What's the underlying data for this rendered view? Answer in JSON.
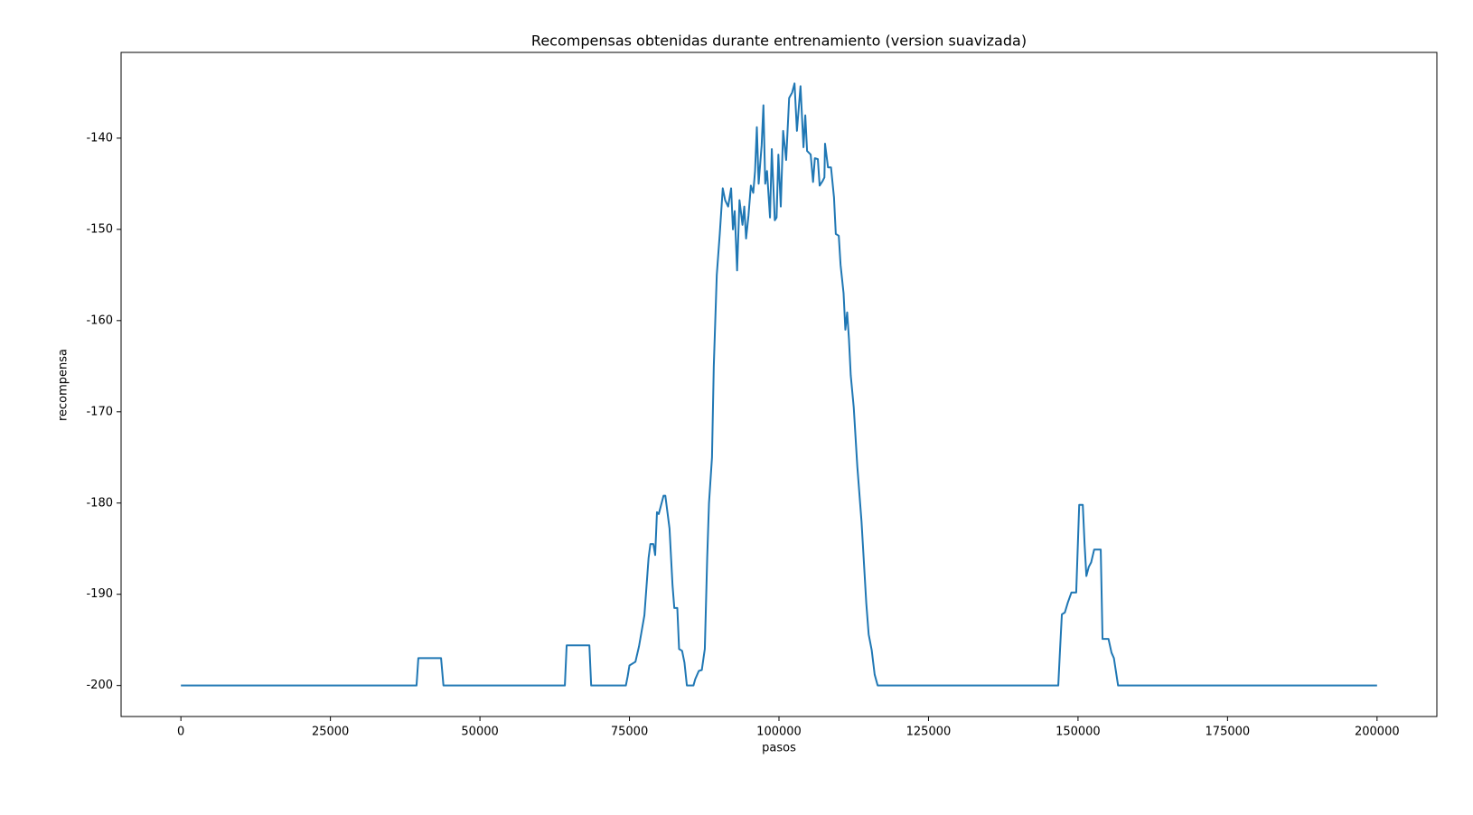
{
  "chart_data": {
    "type": "line",
    "title": "Recompensas obtenidas durante entrenamiento (version suavizada)",
    "xlabel": "pasos",
    "ylabel": "recompensa",
    "xlim": [
      -10000,
      210000
    ],
    "ylim": [
      -203.4,
      -130.6
    ],
    "xticks": [
      0,
      25000,
      50000,
      75000,
      100000,
      125000,
      150000,
      175000,
      200000
    ],
    "yticks": [
      -200,
      -190,
      -180,
      -170,
      -160,
      -150,
      -140
    ],
    "grid": false,
    "x": [
      0,
      39400,
      39700,
      43500,
      43900,
      64200,
      64500,
      68300,
      68600,
      74400,
      74700,
      75000,
      76000,
      76600,
      77500,
      78200,
      78500,
      79000,
      79300,
      79600,
      79900,
      80700,
      81000,
      81700,
      82200,
      82500,
      83000,
      83300,
      83800,
      84200,
      84600,
      85700,
      86000,
      86600,
      87100,
      87600,
      88000,
      88300,
      88800,
      89100,
      89600,
      90100,
      90600,
      91000,
      91500,
      92000,
      92300,
      92600,
      93000,
      93400,
      93900,
      94200,
      94500,
      94900,
      95300,
      95700,
      96000,
      96300,
      96600,
      97100,
      97400,
      97700,
      98000,
      98500,
      98800,
      99300,
      99600,
      99900,
      100300,
      100700,
      101200,
      101700,
      102200,
      102600,
      103000,
      103600,
      104100,
      104400,
      104700,
      105300,
      105700,
      106000,
      106500,
      106800,
      107300,
      107600,
      107700,
      108200,
      108700,
      109200,
      109500,
      110000,
      110300,
      110800,
      111100,
      111400,
      111700,
      112000,
      112500,
      113100,
      113800,
      114600,
      115000,
      115500,
      116000,
      116500,
      146700,
      147000,
      147300,
      147800,
      148300,
      148900,
      149700,
      150200,
      150800,
      151100,
      151400,
      151800,
      152200,
      152700,
      153800,
      154100,
      155100,
      155600,
      156000,
      156700,
      200000
    ],
    "series": [
      {
        "name": "recompensa",
        "color": "#1f77b4",
        "values": [
          -200,
          -200,
          -197,
          -197,
          -200,
          -200,
          -195.6,
          -195.6,
          -200,
          -200,
          -199,
          -197.8,
          -197.4,
          -195.7,
          -192.3,
          -186,
          -184.5,
          -184.5,
          -185.7,
          -181,
          -181.2,
          -179.2,
          -179.2,
          -182.8,
          -189,
          -191.5,
          -191.5,
          -196,
          -196.2,
          -197.5,
          -200,
          -200,
          -199.3,
          -198.4,
          -198.3,
          -196,
          -186,
          -180,
          -175,
          -165,
          -155,
          -150.5,
          -145.5,
          -146.8,
          -147.5,
          -145.5,
          -150,
          -148,
          -154.5,
          -146.8,
          -149.5,
          -147.5,
          -151,
          -148.5,
          -145.2,
          -146,
          -143.6,
          -138.8,
          -145,
          -140.8,
          -136.4,
          -145,
          -143.6,
          -148.7,
          -141.2,
          -149,
          -148.7,
          -141.8,
          -147.5,
          -139.2,
          -142.4,
          -135.6,
          -135,
          -134,
          -139.2,
          -134.3,
          -141,
          -137.5,
          -141.4,
          -141.8,
          -144.8,
          -142.2,
          -142.3,
          -145.2,
          -144.7,
          -144.3,
          -140.6,
          -143.2,
          -143.2,
          -146.5,
          -150.5,
          -150.7,
          -153.9,
          -157,
          -161,
          -159.1,
          -162,
          -166,
          -169.5,
          -176,
          -182,
          -191,
          -194.4,
          -196.1,
          -198.8,
          -200,
          -200,
          -196,
          -192.2,
          -192,
          -190.9,
          -189.8,
          -189.8,
          -180.2,
          -180.2,
          -184.5,
          -188,
          -187,
          -186.5,
          -185.1,
          -185.1,
          -194.9,
          -194.9,
          -196.4,
          -197,
          -200,
          -200
        ]
      }
    ]
  }
}
